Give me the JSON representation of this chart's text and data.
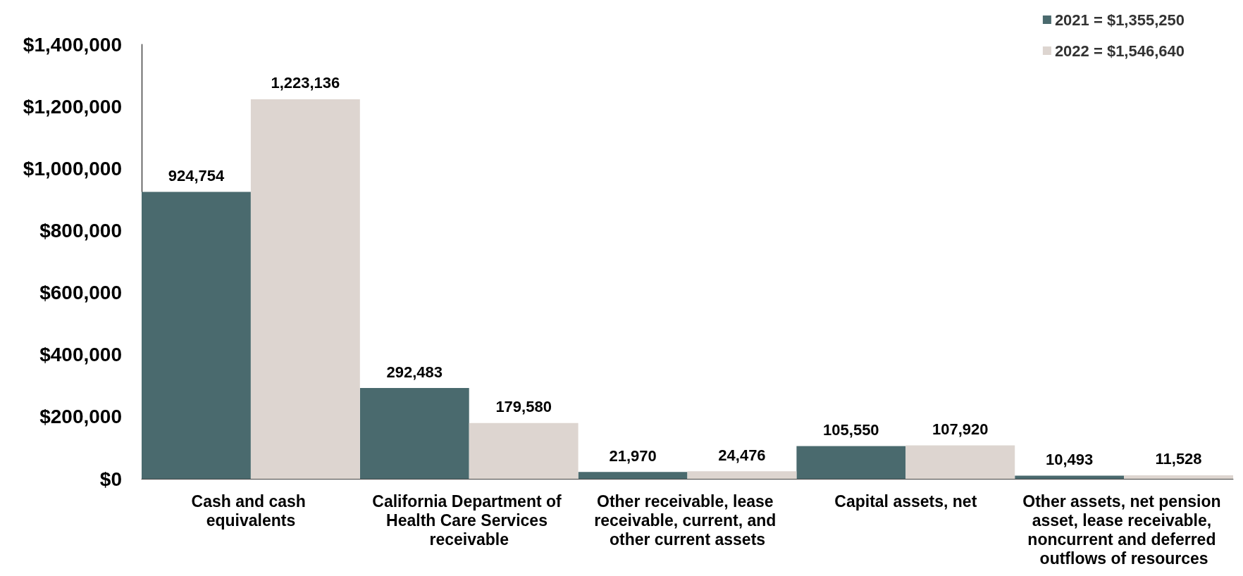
{
  "chart_data": {
    "type": "bar",
    "categories": [
      "Cash and cash equivalents",
      "California Department of Health Care Services receivable",
      "Other receivable, lease receivable, current, and other current assets",
      "Capital assets, net",
      "Other assets, net pension asset, lease receivable, noncurrent and deferred outflows of resources"
    ],
    "series": [
      {
        "name": "2021 = $1,355,250",
        "color": "#4a6a6e",
        "values": [
          924754,
          292483,
          21970,
          105550,
          10493
        ],
        "value_labels": [
          "924,754",
          "292,483",
          "21,970",
          "105,550",
          "10,493"
        ]
      },
      {
        "name": "2022 = $1,546,640",
        "color": "#ddd5d0",
        "values": [
          1223136,
          179580,
          24476,
          107920,
          11528
        ],
        "value_labels": [
          "1,223,136",
          "179,580",
          "24,476",
          "107,920",
          "11,528"
        ]
      }
    ],
    "ylim": [
      0,
      1400000
    ],
    "yticks": [
      {
        "value": 0,
        "label": "$0"
      },
      {
        "value": 200000,
        "label": "$200,000"
      },
      {
        "value": 400000,
        "label": "$400,000"
      },
      {
        "value": 600000,
        "label": "$600,000"
      },
      {
        "value": 800000,
        "label": "$800,000"
      },
      {
        "value": 1000000,
        "label": "$1,000,000"
      },
      {
        "value": 1200000,
        "label": "$1,200,000"
      },
      {
        "value": 1400000,
        "label": "$1,400,000"
      }
    ],
    "grid": false,
    "legend": "top right"
  }
}
